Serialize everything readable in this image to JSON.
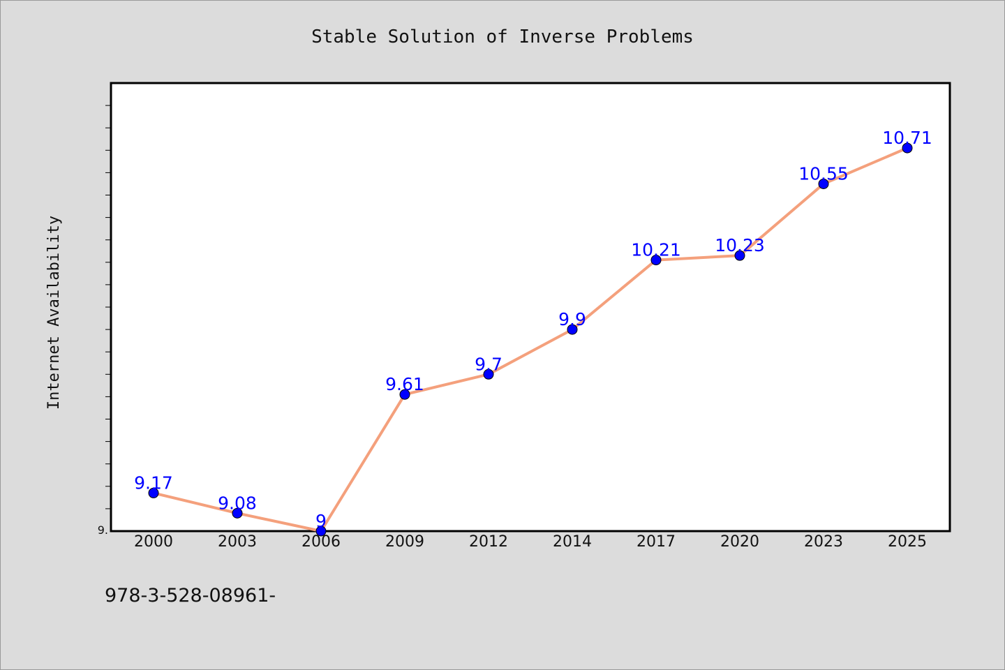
{
  "colors": {
    "background": "#dcdcdc",
    "plot_background": "#ffffff",
    "line": "#f4a07c",
    "marker": "#0000ff",
    "data_label": "#0000ff",
    "axis": "#000000"
  },
  "footer": {
    "text": "978-3-528-08961-"
  },
  "chart_data": {
    "type": "line",
    "title": "Stable Solution of Inverse Problems",
    "xlabel": "",
    "ylabel": "Internet Availability",
    "y_min_label": "9.",
    "categories": [
      "2000",
      "2003",
      "2006",
      "2009",
      "2012",
      "2014",
      "2017",
      "2020",
      "2023",
      "2025"
    ],
    "series": [
      {
        "values": [
          9.17,
          9.08,
          9.0,
          9.61,
          9.7,
          9.9,
          10.21,
          10.23,
          10.55,
          10.71
        ],
        "labels": [
          "9.17",
          "9.08",
          "9",
          "9.61",
          "9.7",
          "9.9",
          "10.21",
          "10.23",
          "10.55",
          "10.71"
        ]
      }
    ],
    "ylim": [
      9.0,
      11.0
    ],
    "grid": false,
    "legend": "none"
  }
}
